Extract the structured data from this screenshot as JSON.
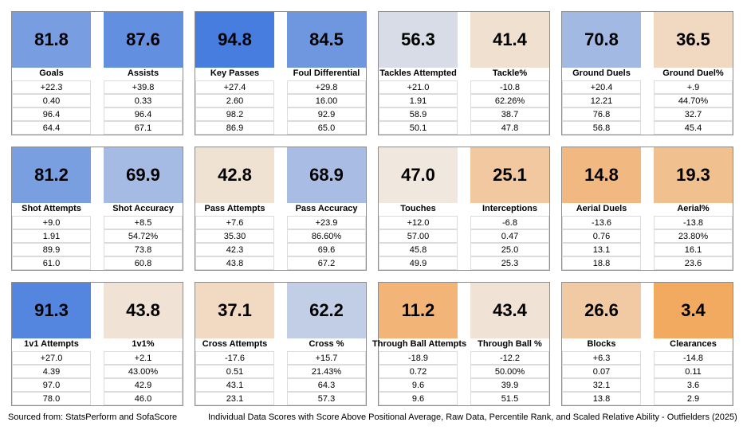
{
  "metrics": [
    {
      "label": "Goals",
      "score": "81.8",
      "rows": [
        "+22.3",
        "0.40",
        "96.4",
        "64.4"
      ]
    },
    {
      "label": "Assists",
      "score": "87.6",
      "rows": [
        "+39.8",
        "0.33",
        "96.4",
        "67.1"
      ]
    },
    {
      "label": "Key Passes",
      "score": "94.8",
      "rows": [
        "+27.4",
        "2.60",
        "98.2",
        "86.9"
      ]
    },
    {
      "label": "Foul Differential",
      "score": "84.5",
      "rows": [
        "+29.8",
        "16.00",
        "92.9",
        "65.0"
      ]
    },
    {
      "label": "Tackles Attempted",
      "score": "56.3",
      "rows": [
        "+21.0",
        "1.91",
        "58.9",
        "50.1"
      ]
    },
    {
      "label": "Tackle%",
      "score": "41.4",
      "rows": [
        "-10.8",
        "62.26%",
        "38.7",
        "47.8"
      ]
    },
    {
      "label": "Ground Duels",
      "score": "70.8",
      "rows": [
        "+20.4",
        "12.21",
        "76.8",
        "56.8"
      ]
    },
    {
      "label": "Ground Duel%",
      "score": "36.5",
      "rows": [
        "+.9",
        "44.70%",
        "32.7",
        "45.4"
      ]
    },
    {
      "label": "Shot Attempts",
      "score": "81.2",
      "rows": [
        "+9.0",
        "1.91",
        "89.9",
        "61.0"
      ]
    },
    {
      "label": "Shot Accuracy",
      "score": "69.9",
      "rows": [
        "+8.5",
        "54.72%",
        "73.8",
        "60.8"
      ]
    },
    {
      "label": "Pass Attempts",
      "score": "42.8",
      "rows": [
        "+7.6",
        "35.30",
        "42.3",
        "43.8"
      ]
    },
    {
      "label": "Pass Accuracy",
      "score": "68.9",
      "rows": [
        "+23.9",
        "86.60%",
        "69.6",
        "67.2"
      ]
    },
    {
      "label": "Touches",
      "score": "47.0",
      "rows": [
        "+12.0",
        "57.00",
        "45.8",
        "49.9"
      ]
    },
    {
      "label": "Interceptions",
      "score": "25.1",
      "rows": [
        "-6.8",
        "0.47",
        "25.0",
        "25.3"
      ]
    },
    {
      "label": "Aerial Duels",
      "score": "14.8",
      "rows": [
        "-13.6",
        "0.76",
        "13.1",
        "18.8"
      ]
    },
    {
      "label": "Aerial%",
      "score": "19.3",
      "rows": [
        "-13.8",
        "23.80%",
        "16.1",
        "23.6"
      ]
    },
    {
      "label": "1v1 Attempts",
      "score": "91.3",
      "rows": [
        "+27.0",
        "4.39",
        "97.0",
        "78.0"
      ]
    },
    {
      "label": "1v1%",
      "score": "43.8",
      "rows": [
        "+2.1",
        "43.00%",
        "42.9",
        "46.0"
      ]
    },
    {
      "label": "Cross Attempts",
      "score": "37.1",
      "rows": [
        "-17.6",
        "0.51",
        "43.1",
        "23.1"
      ]
    },
    {
      "label": "Cross %",
      "score": "62.2",
      "rows": [
        "+15.7",
        "21.43%",
        "64.3",
        "57.3"
      ]
    },
    {
      "label": "Through Ball Attempts",
      "score": "11.2",
      "rows": [
        "-18.9",
        "0.72",
        "9.6",
        "9.6"
      ]
    },
    {
      "label": "Through Ball %",
      "score": "43.4",
      "rows": [
        "-12.2",
        "50.00%",
        "39.9",
        "51.5"
      ]
    },
    {
      "label": "Blocks",
      "score": "26.6",
      "rows": [
        "+6.3",
        "0.07",
        "32.1",
        "13.8"
      ]
    },
    {
      "label": "Clearances",
      "score": "3.4",
      "rows": [
        "-14.8",
        "0.11",
        "3.6",
        "2.9"
      ]
    }
  ],
  "footer": {
    "source": "Sourced from: StatsPerform and SofaScore",
    "caption": "Individual Data Scores with Score Above Positional Average, Raw Data, Percentile Rank, and Scaled Relative Ability - Outfielders (2025)"
  }
}
